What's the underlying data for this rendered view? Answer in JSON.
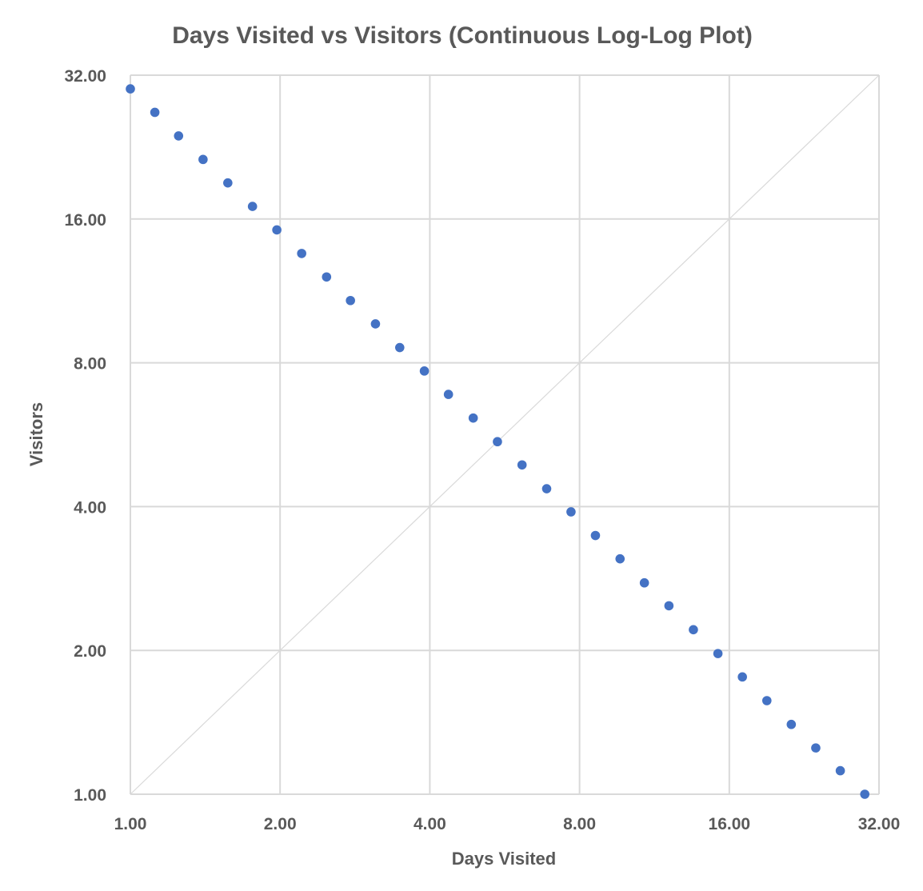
{
  "chart_data": {
    "type": "scatter",
    "title": "Days Visited vs Visitors (Continuous Log-Log Plot)",
    "xlabel": "Days Visited",
    "ylabel": "Visitors",
    "xscale": "log2",
    "yscale": "log2",
    "xlim": [
      1,
      32
    ],
    "ylim": [
      1,
      32
    ],
    "xticks": [
      "1.00",
      "2.00",
      "4.00",
      "8.00",
      "16.00",
      "32.00"
    ],
    "yticks": [
      "1.00",
      "2.00",
      "4.00",
      "8.00",
      "16.00",
      "32.00"
    ],
    "grid": true,
    "legend": "none",
    "reference_line": {
      "name": "y = x",
      "color": "#d9d9d9"
    },
    "series": [
      {
        "name": "Visitors",
        "color": "#4472C4",
        "x": [
          1.0,
          1.12,
          1.25,
          1.4,
          1.57,
          1.76,
          1.97,
          2.21,
          2.48,
          2.77,
          3.11,
          3.48,
          3.9,
          4.36,
          4.89,
          5.47,
          6.13,
          6.87,
          7.69,
          8.61,
          9.65,
          10.8,
          12.1,
          13.55,
          15.18,
          17.0,
          19.04,
          21.32,
          23.88,
          26.75,
          29.96
        ],
        "y": [
          29.96,
          26.75,
          23.88,
          21.32,
          19.04,
          17.0,
          15.18,
          13.55,
          12.1,
          10.8,
          9.65,
          8.61,
          7.69,
          6.87,
          6.13,
          5.47,
          4.89,
          4.36,
          3.9,
          3.48,
          3.11,
          2.77,
          2.48,
          2.21,
          1.97,
          1.76,
          1.57,
          1.4,
          1.25,
          1.12,
          1.0
        ]
      }
    ]
  }
}
